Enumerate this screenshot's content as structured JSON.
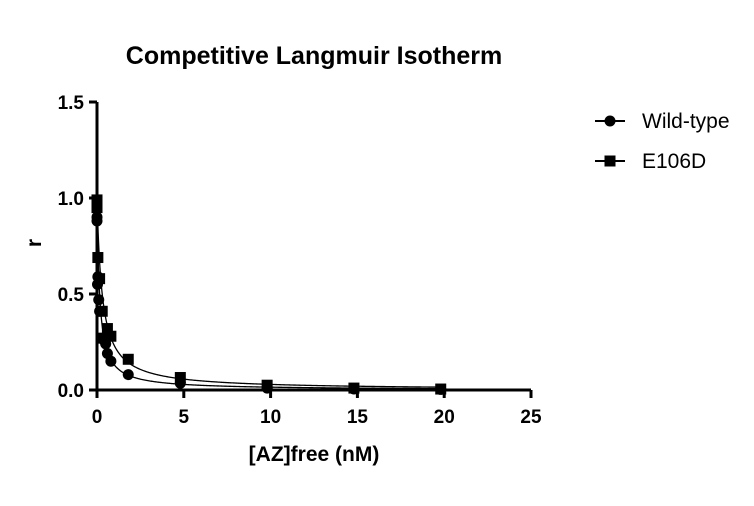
{
  "chart_data": {
    "type": "scatter",
    "title": "Competitive Langmuir Isotherm",
    "xlabel": "[AZ]free (nM)",
    "ylabel": "r",
    "xlim": [
      0,
      25
    ],
    "ylim": [
      0,
      1.5
    ],
    "x_ticks": [
      0,
      5,
      10,
      15,
      20,
      25
    ],
    "y_ticks": [
      0.0,
      0.5,
      1.0,
      1.5
    ],
    "x_tick_labels": [
      "0",
      "5",
      "10",
      "15",
      "20",
      "25"
    ],
    "y_tick_labels": [
      "0.0",
      "0.5",
      "1.0",
      "1.5"
    ],
    "grid": false,
    "legend_position": "top-right",
    "fitted_curves": true,
    "series": [
      {
        "name": "Wild-type",
        "marker": "circle",
        "color": "#000000",
        "points": [
          [
            0.0,
            0.88
          ],
          [
            0.0,
            0.9
          ],
          [
            0.03,
            0.55
          ],
          [
            0.05,
            0.59
          ],
          [
            0.1,
            0.47
          ],
          [
            0.15,
            0.41
          ],
          [
            0.4,
            0.26
          ],
          [
            0.5,
            0.24
          ],
          [
            0.6,
            0.19
          ],
          [
            0.8,
            0.15
          ],
          [
            1.8,
            0.08
          ],
          [
            4.8,
            0.035
          ],
          [
            9.8,
            0.01
          ],
          [
            14.8,
            0.005
          ],
          [
            19.8,
            0.003
          ]
        ],
        "fit": {
          "model": "competitive",
          "Bmax": 1.0,
          "Kd": 0.15
        }
      },
      {
        "name": "E106D",
        "marker": "square",
        "color": "#000000",
        "points": [
          [
            0.0,
            0.99
          ],
          [
            0.0,
            0.95
          ],
          [
            0.05,
            0.69
          ],
          [
            0.15,
            0.58
          ],
          [
            0.3,
            0.41
          ],
          [
            0.4,
            0.27
          ],
          [
            0.6,
            0.32
          ],
          [
            0.8,
            0.28
          ],
          [
            1.8,
            0.16
          ],
          [
            4.8,
            0.065
          ],
          [
            9.8,
            0.025
          ],
          [
            14.8,
            0.01
          ],
          [
            19.8,
            0.005
          ]
        ],
        "fit": {
          "model": "competitive",
          "Bmax": 1.0,
          "Kd": 0.3
        }
      }
    ]
  }
}
